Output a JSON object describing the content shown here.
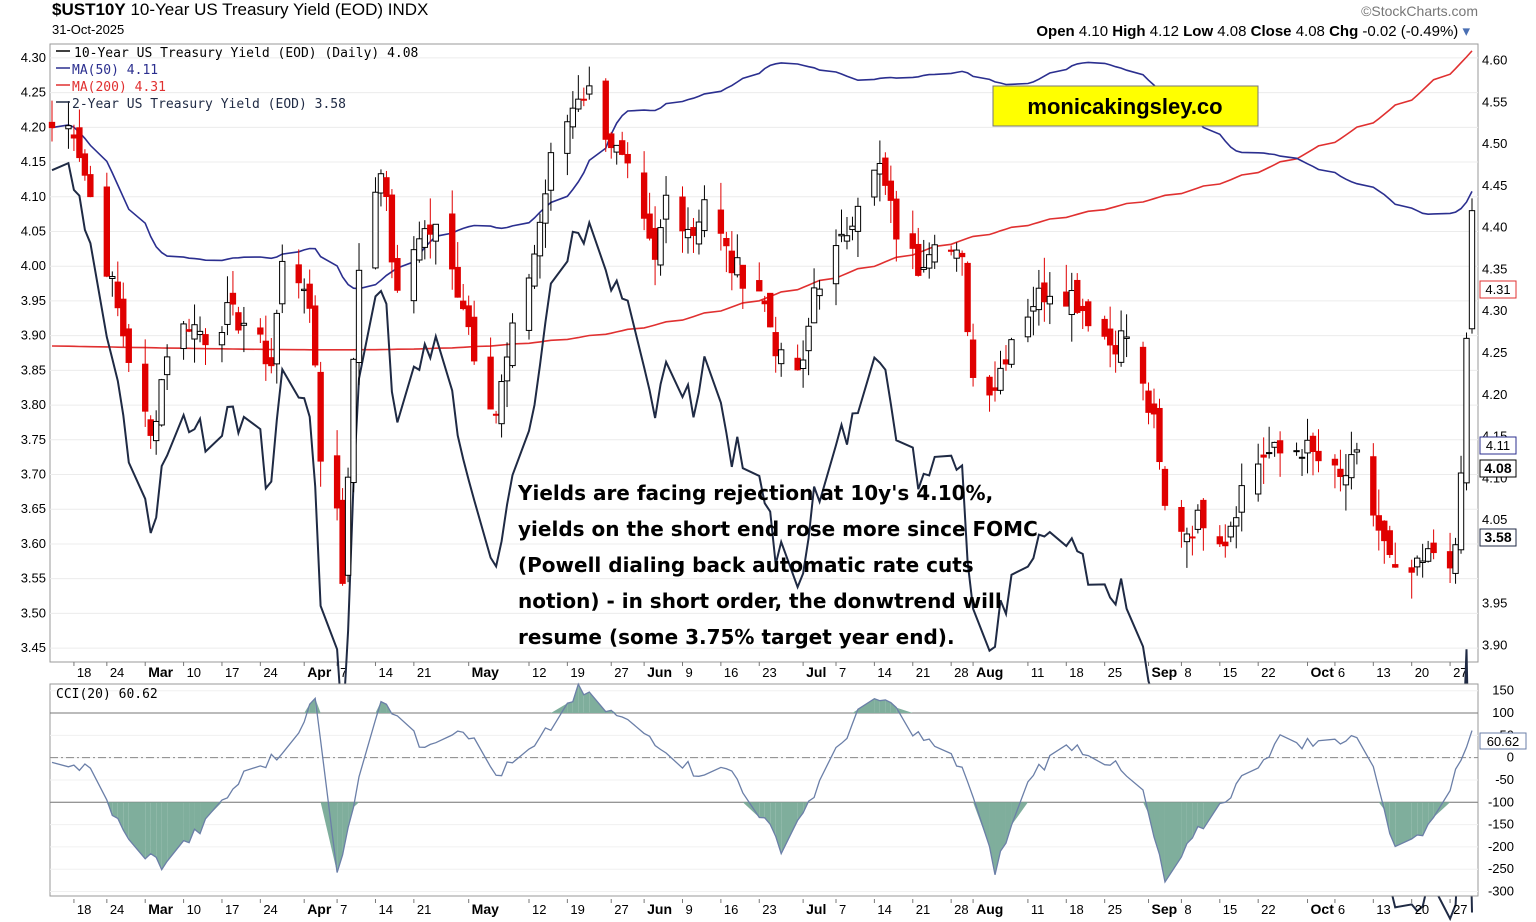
{
  "header": {
    "symbol": "$UST10Y",
    "name": "10-Year US Treasury Yield (EOD)",
    "exchange": "INDX",
    "date": "31-Oct-2025",
    "brand": "©StockCharts.com",
    "open_label": "Open",
    "open": "4.10",
    "high_label": "High",
    "high": "4.12",
    "low_label": "Low",
    "low": "4.08",
    "close_label": "Close",
    "close": "4.08",
    "chg_label": "Chg",
    "chg": "-0.02 (-0.49%)"
  },
  "legend": {
    "main": "10-Year US Treasury Yield (EOD) (Daily) 4.08",
    "ma50": "MA(50) 4.11",
    "ma200": "MA(200) 4.31",
    "two_year": "2-Year US Treasury Yield (EOD) 3.58",
    "cci": "CCI(20) 60.62"
  },
  "watermark": "monicakingsley.co",
  "annotation": [
    "Yields are facing rejection at 10y's 4.10%,",
    "yields on the short end rose more since FOMC",
    "(Powell dialing back automatic rate cuts",
    "notion) - in short order, the donwtrend will",
    "resume (some 3.75% target year end)."
  ],
  "tags": {
    "ma200": "4.31",
    "ma50": "4.11",
    "close": "4.08",
    "two_year": "3.58",
    "cci": "60.62"
  },
  "colors": {
    "up": "#000000",
    "down": "#e00000",
    "ma50": "#2b2f8f",
    "ma200": "#e03030",
    "two_year": "#1f2a44",
    "cci_line": "#6b7fa8",
    "cci_fill": "#7fae9c",
    "watermark_bg": "#ffff00"
  },
  "chart_data": [
    {
      "type": "candlestick",
      "title": "10-Year US Treasury Yield (EOD) (Daily)",
      "x_range": [
        "2025-02-14",
        "2025-10-31"
      ],
      "left_axis": {
        "ticks": [
          "3.45",
          "3.50",
          "3.55",
          "3.60",
          "3.65",
          "3.70",
          "3.75",
          "3.80",
          "3.85",
          "3.90",
          "3.95",
          "4.00",
          "4.05",
          "4.10",
          "4.15",
          "4.20",
          "4.25",
          "4.30"
        ],
        "ylim": [
          3.43,
          4.32
        ],
        "series": "10-Year US Treasury Yield"
      },
      "right_axis": {
        "ticks": [
          "3.90",
          "3.95",
          "4.05",
          "4.10",
          "4.15",
          "4.20",
          "4.25",
          "4.30",
          "4.35",
          "4.40",
          "4.45",
          "4.50",
          "4.55",
          "4.60"
        ],
        "ylim": [
          3.88,
          4.62
        ],
        "series": "2-Year US Treasury Yield"
      },
      "x_ticks": [
        "18",
        "24",
        "Mar",
        "10",
        "17",
        "24",
        "Apr",
        "7",
        "14",
        "21",
        "May",
        "12",
        "19",
        "27",
        "Jun",
        "9",
        "16",
        "23",
        "Jul",
        "7",
        "14",
        "21",
        "28",
        "Aug",
        "11",
        "18",
        "25",
        "Sep",
        "8",
        "15",
        "22",
        "Oct",
        "6",
        "13",
        "20",
        "27"
      ],
      "bold_x_ticks": [
        "Mar",
        "Apr",
        "May",
        "Jun",
        "Jul",
        "Aug",
        "Sep",
        "Oct"
      ],
      "ten_year_close_path": [
        [
          "2025-02-14",
          4.2
        ],
        [
          "2025-02-18",
          4.2
        ],
        [
          "2025-02-21",
          4.1
        ],
        [
          "2025-02-25",
          3.97
        ],
        [
          "2025-02-28",
          3.87
        ],
        [
          "2025-03-04",
          3.75
        ],
        [
          "2025-03-07",
          3.88
        ],
        [
          "2025-03-11",
          3.92
        ],
        [
          "2025-03-14",
          3.9
        ],
        [
          "2025-03-18",
          3.93
        ],
        [
          "2025-03-21",
          3.92
        ],
        [
          "2025-03-26",
          3.86
        ],
        [
          "2025-03-28",
          4.0
        ],
        [
          "2025-04-01",
          3.98
        ],
        [
          "2025-04-03",
          3.86
        ],
        [
          "2025-04-04",
          3.73
        ],
        [
          "2025-04-07",
          3.65
        ],
        [
          "2025-04-08",
          3.55
        ],
        [
          "2025-04-09",
          3.71
        ],
        [
          "2025-04-11",
          4.0
        ],
        [
          "2025-04-15",
          4.15
        ],
        [
          "2025-04-18",
          3.95
        ],
        [
          "2025-04-22",
          4.05
        ],
        [
          "2025-04-25",
          4.05
        ],
        [
          "2025-04-30",
          3.95
        ],
        [
          "2025-05-02",
          3.88
        ],
        [
          "2025-05-06",
          3.79
        ],
        [
          "2025-05-09",
          3.9
        ],
        [
          "2025-05-13",
          4.02
        ],
        [
          "2025-05-16",
          4.15
        ],
        [
          "2025-05-21",
          4.25
        ],
        [
          "2025-05-23",
          4.25
        ],
        [
          "2025-05-27",
          4.18
        ],
        [
          "2025-05-30",
          4.13
        ],
        [
          "2025-06-04",
          4.0
        ],
        [
          "2025-06-06",
          4.1
        ],
        [
          "2025-06-11",
          4.05
        ],
        [
          "2025-06-13",
          4.1
        ],
        [
          "2025-06-18",
          4.0
        ],
        [
          "2025-06-23",
          3.97
        ],
        [
          "2025-06-27",
          3.86
        ],
        [
          "2025-07-01",
          3.85
        ],
        [
          "2025-07-03",
          3.97
        ],
        [
          "2025-07-08",
          4.03
        ],
        [
          "2025-07-11",
          4.1
        ],
        [
          "2025-07-15",
          4.14
        ],
        [
          "2025-07-18",
          4.05
        ],
        [
          "2025-07-22",
          4.0
        ],
        [
          "2025-07-25",
          4.05
        ],
        [
          "2025-07-30",
          4.0
        ],
        [
          "2025-08-01",
          3.84
        ],
        [
          "2025-08-05",
          3.83
        ],
        [
          "2025-08-08",
          3.9
        ],
        [
          "2025-08-12",
          3.95
        ],
        [
          "2025-08-15",
          3.97
        ],
        [
          "2025-08-19",
          3.96
        ],
        [
          "2025-08-22",
          3.93
        ],
        [
          "2025-08-26",
          3.89
        ],
        [
          "2025-08-29",
          3.9
        ],
        [
          "2025-09-03",
          3.77
        ],
        [
          "2025-09-05",
          3.65
        ],
        [
          "2025-09-09",
          3.62
        ],
        [
          "2025-09-12",
          3.64
        ],
        [
          "2025-09-16",
          3.61
        ],
        [
          "2025-09-19",
          3.68
        ],
        [
          "2025-09-23",
          3.73
        ],
        [
          "2025-09-26",
          3.73
        ],
        [
          "2025-09-30",
          3.74
        ],
        [
          "2025-10-03",
          3.72
        ],
        [
          "2025-10-07",
          3.69
        ],
        [
          "2025-10-10",
          3.72
        ],
        [
          "2025-10-14",
          3.62
        ],
        [
          "2025-10-17",
          3.55
        ],
        [
          "2025-10-21",
          3.56
        ],
        [
          "2025-10-24",
          3.59
        ],
        [
          "2025-10-28",
          3.58
        ],
        [
          "2025-10-29",
          3.7
        ],
        [
          "2025-10-31",
          4.08
        ]
      ],
      "ma50_last": 4.11,
      "ma200_last": 4.31,
      "last_close": 4.08,
      "two_year_last": 3.58
    },
    {
      "type": "line",
      "title": "CCI(20)",
      "y_ticks": [
        "150",
        "100",
        "50",
        "0",
        "-50",
        "-100",
        "-150",
        "-200",
        "-250",
        "-300"
      ],
      "ylim": [
        -310,
        165
      ],
      "reference_lines": [
        100,
        0,
        -100
      ],
      "values_path": [
        [
          "2025-02-14",
          0
        ],
        [
          "2025-02-21",
          -30
        ],
        [
          "2025-02-28",
          -190
        ],
        [
          "2025-03-06",
          -240
        ],
        [
          "2025-03-14",
          -150
        ],
        [
          "2025-03-21",
          -40
        ],
        [
          "2025-03-28",
          10
        ],
        [
          "2025-04-03",
          130
        ],
        [
          "2025-04-07",
          -260
        ],
        [
          "2025-04-09",
          -150
        ],
        [
          "2025-04-15",
          140
        ],
        [
          "2025-04-22",
          30
        ],
        [
          "2025-04-30",
          70
        ],
        [
          "2025-05-06",
          -40
        ],
        [
          "2025-05-13",
          20
        ],
        [
          "2025-05-21",
          150
        ],
        [
          "2025-05-27",
          100
        ],
        [
          "2025-06-04",
          40
        ],
        [
          "2025-06-11",
          -30
        ],
        [
          "2025-06-18",
          -30
        ],
        [
          "2025-06-27",
          -200
        ],
        [
          "2025-07-03",
          -80
        ],
        [
          "2025-07-11",
          100
        ],
        [
          "2025-07-16",
          130
        ],
        [
          "2025-07-22",
          50
        ],
        [
          "2025-07-30",
          -20
        ],
        [
          "2025-08-05",
          -250
        ],
        [
          "2025-08-12",
          -30
        ],
        [
          "2025-08-19",
          30
        ],
        [
          "2025-08-26",
          -10
        ],
        [
          "2025-09-01",
          -80
        ],
        [
          "2025-09-05",
          -280
        ],
        [
          "2025-09-12",
          -150
        ],
        [
          "2025-09-19",
          -50
        ],
        [
          "2025-09-26",
          40
        ],
        [
          "2025-10-03",
          30
        ],
        [
          "2025-10-10",
          50
        ],
        [
          "2025-10-14",
          -60
        ],
        [
          "2025-10-17",
          -210
        ],
        [
          "2025-10-22",
          -160
        ],
        [
          "2025-10-28",
          -40
        ],
        [
          "2025-10-31",
          60.62
        ]
      ],
      "last_value": 60.62
    }
  ]
}
